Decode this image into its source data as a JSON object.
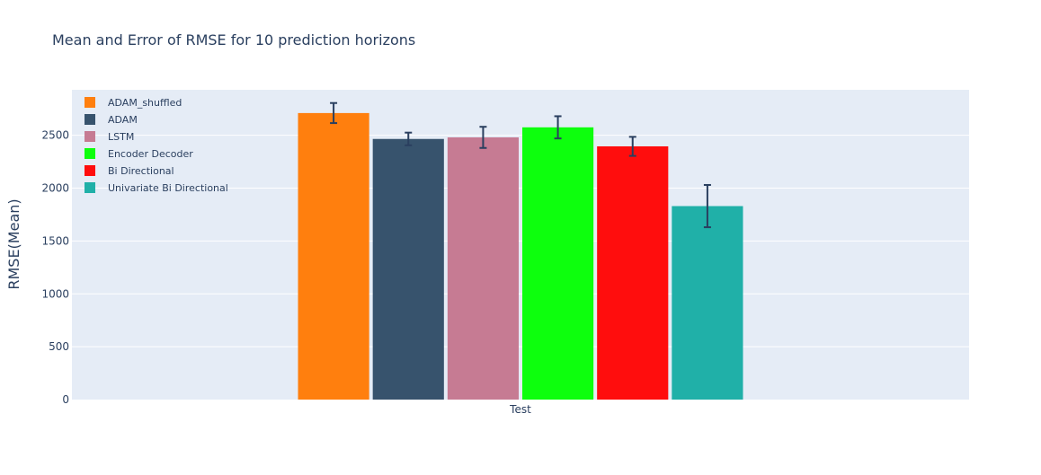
{
  "chart_data": {
    "type": "bar",
    "title": "Mean and Error of RMSE for 10 prediction horizons",
    "xlabel": "",
    "ylabel": "RMSE(Mean)",
    "categories": [
      "Test"
    ],
    "ylim": [
      0,
      2930
    ],
    "yticks": [
      0,
      500,
      1000,
      1500,
      2000,
      2500
    ],
    "ytick_labels": [
      "0",
      "500",
      "1000",
      "1500",
      "2000",
      "2500"
    ],
    "grid": true,
    "legend_position": "top-left",
    "plot_background": "#e5ecf6",
    "error_bar_color": "#2a3f5f",
    "series": [
      {
        "name": "ADAM_shuffled",
        "color": "#ff7f0e",
        "values": [
          2710
        ],
        "error": [
          95
        ]
      },
      {
        "name": "ADAM",
        "color": "#37536d",
        "values": [
          2465
        ],
        "error": [
          60
        ]
      },
      {
        "name": "LSTM",
        "color": "#c67b93",
        "values": [
          2480
        ],
        "error": [
          100
        ]
      },
      {
        "name": "Encoder Decoder",
        "color": "#0dff0d",
        "values": [
          2575
        ],
        "error": [
          105
        ]
      },
      {
        "name": "Bi Directional",
        "color": "#ff0d0d",
        "values": [
          2395
        ],
        "error": [
          90
        ]
      },
      {
        "name": "Univariate Bi Directional",
        "color": "#20b0a8",
        "values": [
          1830
        ],
        "error": [
          200
        ]
      }
    ]
  }
}
